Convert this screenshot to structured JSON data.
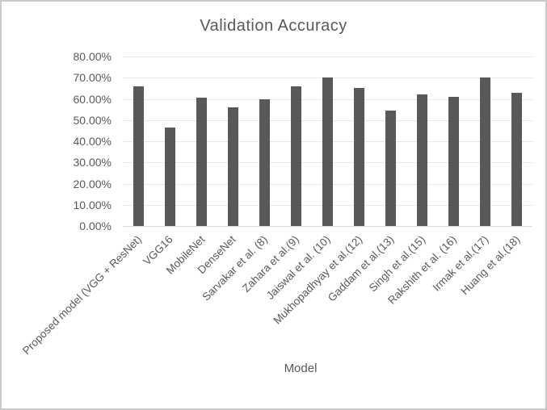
{
  "frame": {
    "background": "#ffffff",
    "border_color": "#c9c9c9"
  },
  "chart_data": {
    "type": "bar",
    "title": "Validation Accuracy",
    "xlabel": "Model",
    "ylabel": "",
    "categories": [
      "Proposed model (VGG + ResNet)",
      "VGG16",
      "MobileNet",
      "DenseNet",
      "Sarvakar et al. (8)",
      "Zahara et al.(9)",
      "Jaiswal et al. (10)",
      "Mukhopadhyay et al.(12)",
      "Gaddam et al.(13)",
      "Singh et al.(15)",
      "Rakshith et al. (16)",
      "Irmak et al.(17)",
      "Huang et al.(18)"
    ],
    "values": [
      66,
      46.5,
      60.5,
      56,
      60,
      66,
      70,
      65,
      54.5,
      62,
      61,
      70,
      63
    ],
    "value_unit": "percent",
    "ylim": [
      0,
      80
    ],
    "y_tick_step": 10,
    "y_ticks": [
      "0.00%",
      "10.00%",
      "20.00%",
      "30.00%",
      "40.00%",
      "50.00%",
      "60.00%",
      "70.00%",
      "80.00%"
    ],
    "grid": true,
    "legend": "none",
    "x_label_rotation_deg": -45,
    "bar_color": "#595959",
    "gridline_color": "#e7e7e7",
    "axis_line_color": "#d9d9d9",
    "text_color": "#595959"
  }
}
